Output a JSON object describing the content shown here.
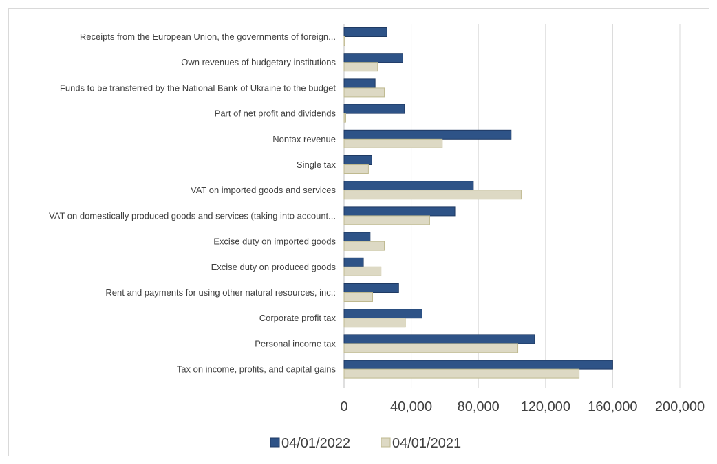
{
  "chart_data": {
    "type": "bar",
    "orientation": "horizontal",
    "categories": [
      "Receipts from the European Union, the governments of foreign...",
      "Own revenues of budgetary institutions",
      "Funds to be transferred by the National Bank of Ukraine to the budget",
      "Part of net profit and dividends",
      "Nontax revenue",
      "Single tax",
      "VAT on imported goods and services",
      "VAT on domestically produced goods and services (taking into account...",
      "Excise duty on imported goods",
      "Excise duty on produced goods",
      "Rent and payments for using other natural resources, inc.:",
      "Corporate profit tax",
      "Personal income tax",
      "Tax on income, profits, and capital gains"
    ],
    "series": [
      {
        "name": "04/01/2022",
        "color": "#2e5387",
        "values": [
          25500,
          35000,
          18500,
          36000,
          99500,
          16500,
          77000,
          66000,
          15500,
          11500,
          32500,
          46500,
          113500,
          160000
        ]
      },
      {
        "name": "04/01/2021",
        "color": "#ddd9c4",
        "values": [
          500,
          20000,
          24000,
          1000,
          58500,
          14500,
          105500,
          51000,
          24000,
          22000,
          17000,
          36500,
          103500,
          140000
        ]
      }
    ],
    "xlim": [
      0,
      200000
    ],
    "x_ticks": [
      "0",
      "40,000",
      "80,000",
      "120,000",
      "160,000",
      "200,000"
    ],
    "x_tick_values": [
      0,
      40000,
      80000,
      120000,
      160000,
      200000
    ],
    "grid": "vertical",
    "legend_position": "bottom"
  }
}
